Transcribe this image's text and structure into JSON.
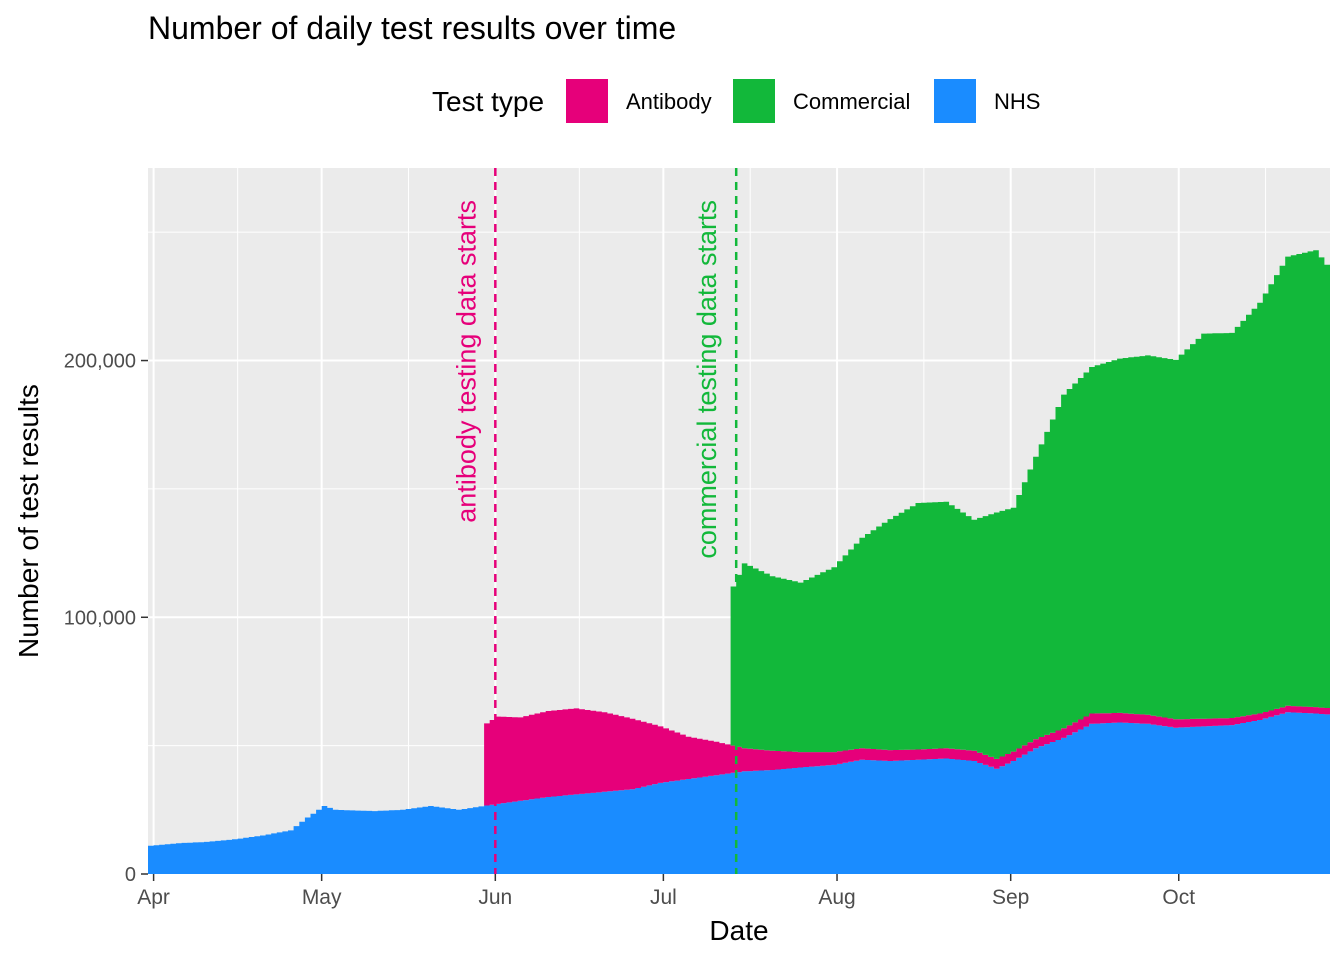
{
  "chart_data": {
    "type": "area",
    "title": "Number of daily test results over time",
    "xlabel": "Date",
    "ylabel": "Number of test results",
    "x_range": [
      "2020-03-31",
      "2020-10-28"
    ],
    "ylim": [
      0,
      275000
    ],
    "y_ticks": [
      0,
      100000,
      200000
    ],
    "y_tick_labels": [
      "0",
      "100,000",
      "200,000"
    ],
    "x_ticks": [
      "2020-04-01",
      "2020-05-01",
      "2020-06-01",
      "2020-07-01",
      "2020-08-01",
      "2020-09-01",
      "2020-10-01"
    ],
    "x_tick_labels": [
      "Apr",
      "May",
      "Jun",
      "Jul",
      "Aug",
      "Sep",
      "Oct"
    ],
    "grid": true,
    "stacked": true,
    "legend": {
      "title": "Test type",
      "position": "top",
      "entries": [
        "Antibody",
        "Commercial",
        "NHS"
      ]
    },
    "series": [
      {
        "name": "NHS",
        "color": "#1a8cff",
        "points": [
          [
            "2020-03-31",
            11000
          ],
          [
            "2020-04-05",
            12000
          ],
          [
            "2020-04-10",
            12500
          ],
          [
            "2020-04-15",
            13500
          ],
          [
            "2020-04-20",
            15000
          ],
          [
            "2020-04-25",
            17000
          ],
          [
            "2020-04-28",
            22000
          ],
          [
            "2020-05-01",
            26500
          ],
          [
            "2020-05-03",
            25000
          ],
          [
            "2020-05-10",
            24500
          ],
          [
            "2020-05-15",
            25000
          ],
          [
            "2020-05-20",
            26500
          ],
          [
            "2020-05-25",
            25000
          ],
          [
            "2020-05-31",
            27000
          ],
          [
            "2020-06-05",
            28500
          ],
          [
            "2020-06-10",
            30000
          ],
          [
            "2020-06-15",
            31000
          ],
          [
            "2020-06-20",
            32000
          ],
          [
            "2020-06-25",
            33000
          ],
          [
            "2020-06-30",
            35500
          ],
          [
            "2020-07-05",
            37000
          ],
          [
            "2020-07-10",
            38500
          ],
          [
            "2020-07-15",
            40000
          ],
          [
            "2020-07-20",
            40500
          ],
          [
            "2020-07-25",
            41500
          ],
          [
            "2020-07-31",
            42500
          ],
          [
            "2020-08-05",
            44500
          ],
          [
            "2020-08-10",
            44000
          ],
          [
            "2020-08-15",
            44500
          ],
          [
            "2020-08-20",
            45000
          ],
          [
            "2020-08-25",
            44000
          ],
          [
            "2020-08-29",
            41000
          ],
          [
            "2020-09-01",
            44000
          ],
          [
            "2020-09-05",
            49000
          ],
          [
            "2020-09-10",
            53000
          ],
          [
            "2020-09-15",
            58500
          ],
          [
            "2020-09-20",
            59000
          ],
          [
            "2020-09-25",
            58500
          ],
          [
            "2020-09-30",
            57000
          ],
          [
            "2020-10-05",
            57500
          ],
          [
            "2020-10-10",
            58000
          ],
          [
            "2020-10-15",
            60000
          ],
          [
            "2020-10-20",
            63000
          ],
          [
            "2020-10-25",
            62500
          ],
          [
            "2020-10-28",
            62000
          ]
        ]
      },
      {
        "name": "Antibody",
        "color": "#e6007a",
        "points": [
          [
            "2020-05-30",
            32000
          ],
          [
            "2020-06-01",
            34000
          ],
          [
            "2020-06-05",
            32500
          ],
          [
            "2020-06-10",
            33500
          ],
          [
            "2020-06-15",
            33500
          ],
          [
            "2020-06-20",
            31000
          ],
          [
            "2020-06-25",
            27500
          ],
          [
            "2020-06-30",
            22000
          ],
          [
            "2020-07-05",
            16500
          ],
          [
            "2020-07-10",
            13000
          ],
          [
            "2020-07-15",
            9000
          ],
          [
            "2020-07-20",
            7500
          ],
          [
            "2020-07-25",
            6000
          ],
          [
            "2020-07-31",
            5000
          ],
          [
            "2020-08-05",
            4500
          ],
          [
            "2020-08-15",
            4000
          ],
          [
            "2020-08-25",
            4000
          ],
          [
            "2020-09-05",
            3500
          ],
          [
            "2020-09-15",
            4000
          ],
          [
            "2020-09-25",
            3500
          ],
          [
            "2020-10-05",
            3000
          ],
          [
            "2020-10-15",
            2500
          ],
          [
            "2020-10-28",
            2500
          ]
        ]
      },
      {
        "name": "Commercial",
        "color": "#12b83a",
        "points": [
          [
            "2020-07-13",
            62000
          ],
          [
            "2020-07-15",
            72000
          ],
          [
            "2020-07-20",
            68000
          ],
          [
            "2020-07-25",
            66000
          ],
          [
            "2020-07-31",
            72000
          ],
          [
            "2020-08-05",
            82000
          ],
          [
            "2020-08-10",
            90000
          ],
          [
            "2020-08-15",
            96000
          ],
          [
            "2020-08-20",
            96000
          ],
          [
            "2020-08-25",
            90000
          ],
          [
            "2020-08-29",
            96000
          ],
          [
            "2020-09-01",
            95000
          ],
          [
            "2020-09-05",
            110000
          ],
          [
            "2020-09-10",
            130000
          ],
          [
            "2020-09-15",
            135000
          ],
          [
            "2020-09-20",
            138000
          ],
          [
            "2020-09-25",
            140000
          ],
          [
            "2020-09-30",
            140000
          ],
          [
            "2020-10-05",
            150000
          ],
          [
            "2020-10-10",
            150000
          ],
          [
            "2020-10-15",
            160000
          ],
          [
            "2020-10-20",
            175000
          ],
          [
            "2020-10-25",
            178000
          ],
          [
            "2020-10-28",
            170000
          ]
        ]
      }
    ],
    "annotations": [
      {
        "text": "antibody testing data starts",
        "date": "2020-06-01",
        "color": "#e6007a"
      },
      {
        "text": "commercial testing data starts",
        "date": "2020-07-14",
        "color": "#12b83a"
      }
    ]
  }
}
